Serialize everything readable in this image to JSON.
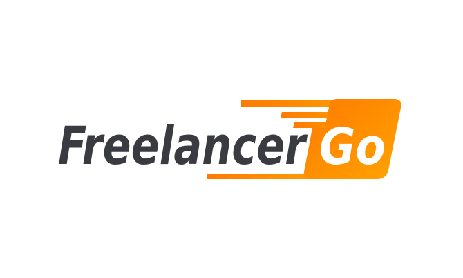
{
  "logo": {
    "word_primary": "Freelancer",
    "word_badge": "Go",
    "colors": {
      "background": "#ffffff",
      "text_dark": "#3a3b40",
      "accent_start": "#ff7a00",
      "accent_end": "#ffa400",
      "badge_text": "#ffffff"
    }
  }
}
